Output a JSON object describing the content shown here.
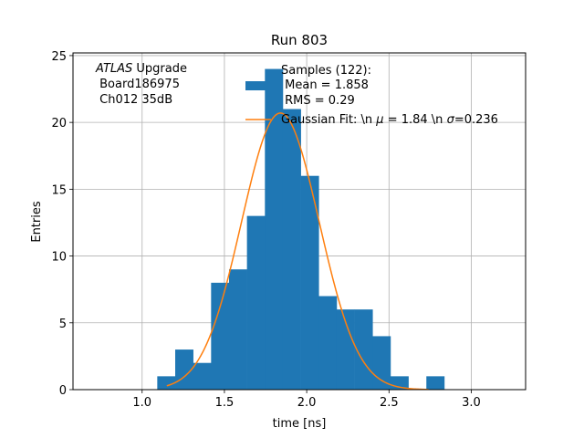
{
  "chart_data": {
    "type": "bar",
    "title": "Run 803",
    "xlabel": "time [ns]",
    "ylabel": "Entries",
    "xlim": [
      0.58,
      3.33
    ],
    "ylim": [
      0,
      25.2
    ],
    "xticks": [
      1.0,
      1.5,
      2.0,
      2.5,
      3.0
    ],
    "xtick_labels": [
      "1.0",
      "1.5",
      "2.0",
      "2.5",
      "3.0"
    ],
    "yticks": [
      0,
      5,
      10,
      15,
      20,
      25
    ],
    "ytick_labels": [
      "0",
      "5",
      "10",
      "15",
      "20",
      "25"
    ],
    "grid": true,
    "bin_width": 0.109,
    "bins": [
      {
        "x0": 1.092,
        "value": 1
      },
      {
        "x0": 1.201,
        "value": 3
      },
      {
        "x0": 1.31,
        "value": 2
      },
      {
        "x0": 1.419,
        "value": 8
      },
      {
        "x0": 1.528,
        "value": 9
      },
      {
        "x0": 1.637,
        "value": 13
      },
      {
        "x0": 1.746,
        "value": 24
      },
      {
        "x0": 1.855,
        "value": 21
      },
      {
        "x0": 1.964,
        "value": 16
      },
      {
        "x0": 2.073,
        "value": 7
      },
      {
        "x0": 2.182,
        "value": 6
      },
      {
        "x0": 2.291,
        "value": 6
      },
      {
        "x0": 2.4,
        "value": 4
      },
      {
        "x0": 2.509,
        "value": 1
      },
      {
        "x0": 2.618,
        "value": 0
      },
      {
        "x0": 2.727,
        "value": 1
      }
    ],
    "fit": {
      "type": "gaussian",
      "amplitude": 20.7,
      "mu": 1.84,
      "sigma": 0.236,
      "x_range": [
        1.15,
        2.74
      ]
    },
    "colors": {
      "bars": "#1f77b4",
      "fit": "#ff7f0e"
    },
    "annotation": {
      "line1_italic": "ATLAS",
      "line1_rest": " Upgrade",
      "line2": " Board186975",
      "line3": " Ch012 35dB"
    },
    "legend": {
      "position": "top-right",
      "hist_line1": "Samples (122):",
      "hist_line2": " Mean = 1.858",
      "hist_line3": " RMS = 0.29",
      "fit_label_a": "Gaussian Fit: \\n ",
      "fit_label_mu": "μ",
      "fit_label_b": " = 1.84 \\n ",
      "fit_label_sigma": "σ",
      "fit_label_c": "=0.236"
    }
  }
}
